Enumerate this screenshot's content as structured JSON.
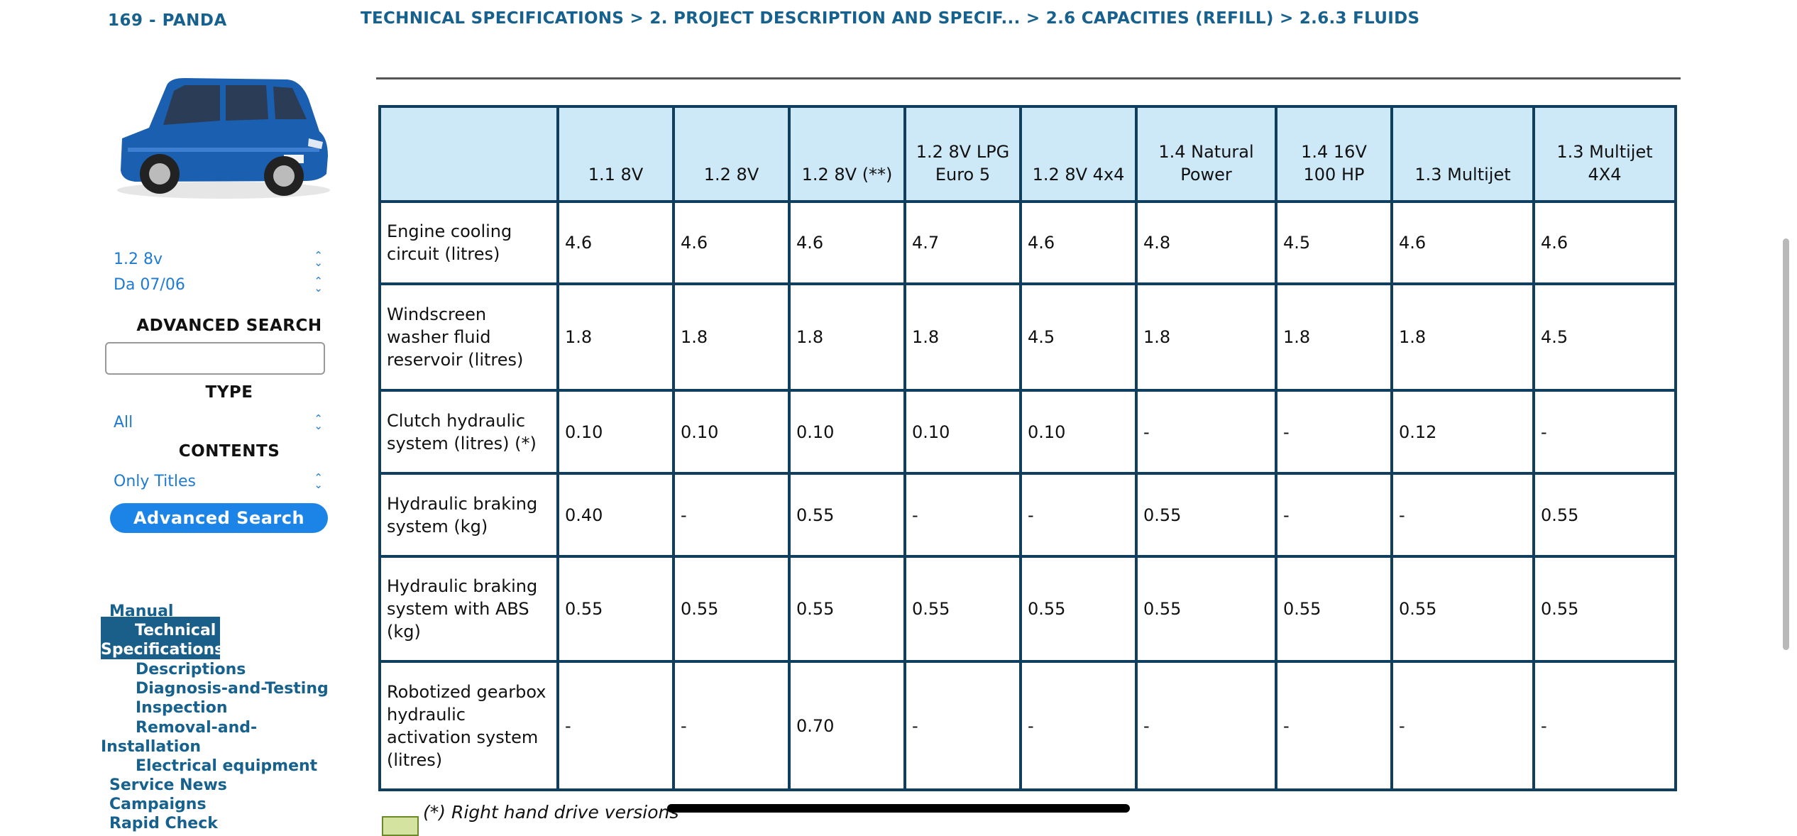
{
  "header": {
    "model": "169 - PANDA",
    "breadcrumb": "TECHNICAL SPECIFICATIONS > 2. PROJECT DESCRIPTION AND SPECIF... > 2.6 CAPACITIES (REFILL) > 2.6.3 FLUIDS"
  },
  "sidebar": {
    "engine_select": "1.2 8v",
    "date_select": "Da 07/06",
    "advanced_search_heading": "ADVANCED SEARCH",
    "search_value": "",
    "type_heading": "TYPE",
    "type_select": "All",
    "contents_heading": "CONTENTS",
    "contents_select": "Only Titles",
    "advanced_search_button": "Advanced Search",
    "tree": {
      "manual": "Manual",
      "technical_specifications": "Technical Specifications",
      "descriptions": "Descriptions",
      "diagnosis": "Diagnosis-and-Testing",
      "inspection": "Inspection",
      "removal": "Removal-and-Installation",
      "electrical": "Electrical equipment",
      "service_news": "Service News",
      "campaigns": "Campaigns",
      "rapid_check": "Rapid Check"
    }
  },
  "table": {
    "headers": [
      "",
      "1.1 8V",
      "1.2 8V",
      "1.2 8V (**)",
      "1.2 8V LPG Euro 5",
      "1.2 8V 4x4",
      "1.4 Natural Power",
      "1.4 16V 100 HP",
      "1.3 Multijet",
      "1.3 Multijet 4X4"
    ],
    "rows": [
      {
        "label": "Engine cooling circuit (litres)",
        "values": [
          "4.6",
          "4.6",
          "4.6",
          "4.7",
          "4.6",
          "4.8",
          "4.5",
          "4.6",
          "4.6"
        ]
      },
      {
        "label": "Windscreen washer fluid reservoir (litres)",
        "values": [
          "1.8",
          "1.8",
          "1.8",
          "1.8",
          "4.5",
          "1.8",
          "1.8",
          "1.8",
          "4.5"
        ]
      },
      {
        "label": "Clutch hydraulic system (litres) (*)",
        "values": [
          "0.10",
          "0.10",
          "0.10",
          "0.10",
          "0.10",
          "-",
          "-",
          "0.12",
          "-"
        ]
      },
      {
        "label": "Hydraulic braking system (kg)",
        "values": [
          "0.40",
          "-",
          "0.55",
          "-",
          "-",
          "0.55",
          "-",
          "-",
          "0.55"
        ]
      },
      {
        "label": "Hydraulic braking system with ABS (kg)",
        "values": [
          "0.55",
          "0.55",
          "0.55",
          "0.55",
          "0.55",
          "0.55",
          "0.55",
          "0.55",
          "0.55"
        ]
      },
      {
        "label": "Robotized gearbox hydraulic activation system (litres)",
        "values": [
          "-",
          "-",
          "0.70",
          "-",
          "-",
          "-",
          "-",
          "-",
          "-"
        ]
      }
    ]
  },
  "footnote": "(*) Right hand drive versions"
}
